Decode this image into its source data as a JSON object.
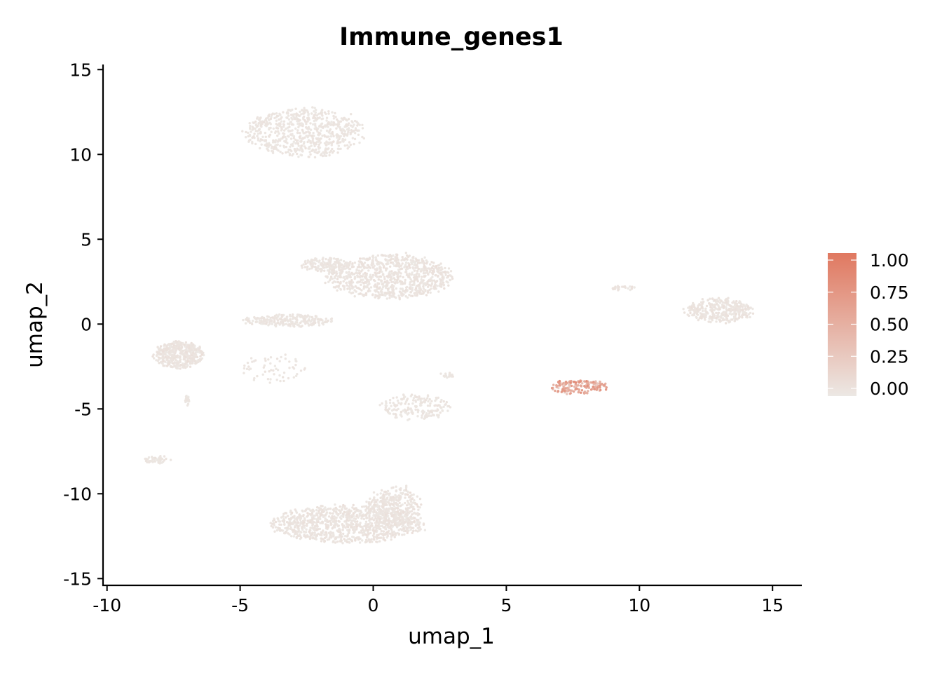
{
  "chart_data": {
    "type": "scatter",
    "title": "Immune_genes1",
    "xlabel": "umap_1",
    "ylabel": "umap_2",
    "xlim": [
      -10.15,
      16.1
    ],
    "ylim": [
      -15.4,
      15.3
    ],
    "xticks": [
      -10,
      -5,
      0,
      5,
      10,
      15
    ],
    "yticks": [
      -15,
      -10,
      -5,
      0,
      5,
      10,
      15
    ],
    "xtick_labels": [
      "-10",
      "-5",
      "0",
      "5",
      "10",
      "15"
    ],
    "ytick_labels": [
      "-15",
      "-10",
      "-5",
      "0",
      "5",
      "10",
      "15"
    ],
    "grid": false,
    "legend": {
      "position": "right",
      "type": "colorbar",
      "range": [
        0,
        1
      ],
      "ticks": [
        0,
        0.25,
        0.5,
        0.75,
        1.0
      ],
      "tick_labels": [
        "0.00",
        "0.25",
        "0.50",
        "0.75",
        "1.00"
      ],
      "low_color": "#ece8e4",
      "high_color": "#e07860"
    },
    "clusters": [
      {
        "id": "top",
        "cx": -2.6,
        "cy": 11.3,
        "rx": 2.2,
        "ry": 1.4,
        "n": 700,
        "value": 0.02,
        "value_sd": 0.015
      },
      {
        "id": "center-upper",
        "cx": 0.6,
        "cy": 2.8,
        "rx": 2.3,
        "ry": 1.3,
        "n": 900,
        "value": 0.03,
        "value_sd": 0.02
      },
      {
        "id": "center-upper-left",
        "cx": -1.8,
        "cy": 3.5,
        "rx": 0.9,
        "ry": 0.4,
        "n": 150,
        "value": 0.02,
        "value_sd": 0.015
      },
      {
        "id": "left",
        "cx": -7.3,
        "cy": -1.8,
        "rx": 0.9,
        "ry": 0.8,
        "n": 420,
        "value": 0.03,
        "value_sd": 0.02
      },
      {
        "id": "left-tail",
        "cx": -7.0,
        "cy": -4.5,
        "rx": 0.08,
        "ry": 0.3,
        "n": 20,
        "value": 0.02,
        "value_sd": 0.01
      },
      {
        "id": "left-middle",
        "cx": -3.2,
        "cy": 0.2,
        "rx": 1.7,
        "ry": 0.35,
        "n": 230,
        "value": 0.02,
        "value_sd": 0.015
      },
      {
        "id": "left-middle-sparse",
        "cx": -3.8,
        "cy": -2.6,
        "rx": 1.3,
        "ry": 0.9,
        "n": 60,
        "value": 0.02,
        "value_sd": 0.015
      },
      {
        "id": "bottom-left-small",
        "cx": -8.1,
        "cy": -8.0,
        "rx": 0.5,
        "ry": 0.25,
        "n": 45,
        "value": 0.02,
        "value_sd": 0.01
      },
      {
        "id": "center-lower",
        "cx": 1.6,
        "cy": -4.9,
        "rx": 1.3,
        "ry": 0.7,
        "n": 190,
        "value": 0.02,
        "value_sd": 0.015
      },
      {
        "id": "center-lower-tail",
        "cx": 2.8,
        "cy": -3.0,
        "rx": 0.3,
        "ry": 0.15,
        "n": 20,
        "value": 0.02,
        "value_sd": 0.01
      },
      {
        "id": "bottom",
        "cx": -1.0,
        "cy": -11.8,
        "rx": 2.8,
        "ry": 1.1,
        "n": 1000,
        "value": 0.03,
        "value_sd": 0.02
      },
      {
        "id": "bottom-right-lobe",
        "cx": 0.8,
        "cy": -10.8,
        "rx": 1.0,
        "ry": 1.2,
        "n": 350,
        "value": 0.03,
        "value_sd": 0.02
      },
      {
        "id": "right-small",
        "cx": 9.4,
        "cy": 2.1,
        "rx": 0.45,
        "ry": 0.15,
        "n": 25,
        "value": 0.03,
        "value_sd": 0.02
      },
      {
        "id": "right",
        "cx": 13.0,
        "cy": 0.8,
        "rx": 1.2,
        "ry": 0.7,
        "n": 360,
        "value": 0.03,
        "value_sd": 0.02
      },
      {
        "id": "immune",
        "cx": 7.7,
        "cy": -3.7,
        "rx": 1.1,
        "ry": 0.4,
        "n": 170,
        "value": 0.5,
        "value_sd": 0.16
      }
    ]
  }
}
